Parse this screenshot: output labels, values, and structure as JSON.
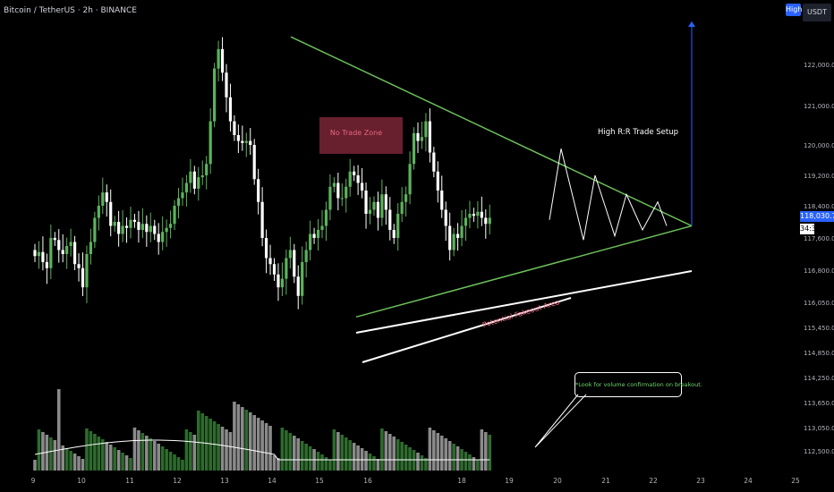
{
  "header": {
    "symbol_title": "Bitcoin / TetherUS · 2h · BINANCE",
    "high_button": "High",
    "currency_button": "USDT"
  },
  "price_axis": {
    "current_price": "118,030.76",
    "countdown": "34:39"
  },
  "annotations": {
    "no_trade_zone": "No Trade Zone",
    "setup_label": "High R:R Trade Setup",
    "fakeout_label": "Potential Fakeout Area",
    "volume_note": "*Look for volume confirmation on breakout."
  },
  "colors": {
    "background": "#000000",
    "bull": "#5cb35c",
    "bear": "#ffffff",
    "triangle": "#6cbf5a",
    "zone": "#8b2a3d",
    "zone_text": "#e8667e",
    "target_line": "#2962ff",
    "volume_bull": "#2e6b2e",
    "volume_bear": "#8a8a8a",
    "volume_ma": "#ffffff"
  },
  "chart_data": {
    "type": "candlestick",
    "title": "Bitcoin / TetherUS · 2h · BINANCE",
    "x_ticks": [
      "9",
      "10",
      "11",
      "12",
      "13",
      "14",
      "15",
      "16",
      "18",
      "19",
      "20",
      "21",
      "22",
      "23",
      "24",
      "25"
    ],
    "y_ticks": [
      "122,000.00",
      "121,000.00",
      "120,000.00",
      "119,200.00",
      "118,400.00",
      "117,600.00",
      "116,800.00",
      "116,050.00",
      "115,450.00",
      "114,850.00",
      "114,250.00",
      "113,650.00",
      "113,050.00",
      "112,500.00"
    ],
    "y_scale": "compressed-lower",
    "current_price": 118030.76,
    "symmetrical_triangle": {
      "upper_line": [
        [
          "Jul 14",
          122900
        ],
        [
          "Jul 22.8",
          117900
        ]
      ],
      "lower_line": [
        [
          "Jul 15.8",
          115700
        ],
        [
          "Jul 22.8",
          117900
        ]
      ]
    },
    "projected_path": [
      118050,
      119900,
      117550,
      119200,
      117650,
      118700,
      117800,
      118500,
      117900
    ],
    "target_price": 123400,
    "volume_moving_average": true
  }
}
